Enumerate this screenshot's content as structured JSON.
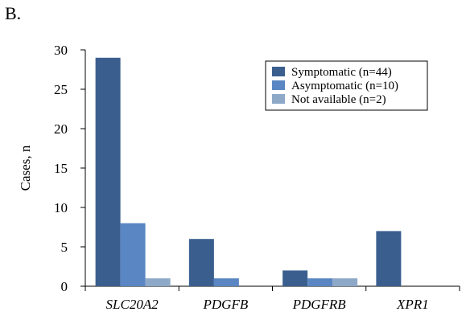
{
  "panel_label": "B.",
  "chart_data": {
    "type": "bar",
    "ylabel": "Cases, n",
    "xlabel": "",
    "ylim": [
      0,
      30
    ],
    "yticks": [
      0,
      5,
      10,
      15,
      20,
      25,
      30
    ],
    "categories": [
      "SLC20A2",
      "PDGFB",
      "PDGFRB",
      "XPR1"
    ],
    "series": [
      {
        "name": "Symptomatic (n=44)",
        "color": "#3a5f8f",
        "values": [
          29,
          6,
          2,
          7
        ]
      },
      {
        "name": "Asymptomatic (n=10)",
        "color": "#5a87c3",
        "values": [
          8,
          1,
          1,
          0
        ]
      },
      {
        "name": "Not available (n=2)",
        "color": "#8ea8c8",
        "values": [
          1,
          0,
          1,
          0
        ]
      }
    ],
    "legend_position": "top-right",
    "grid": false
  }
}
